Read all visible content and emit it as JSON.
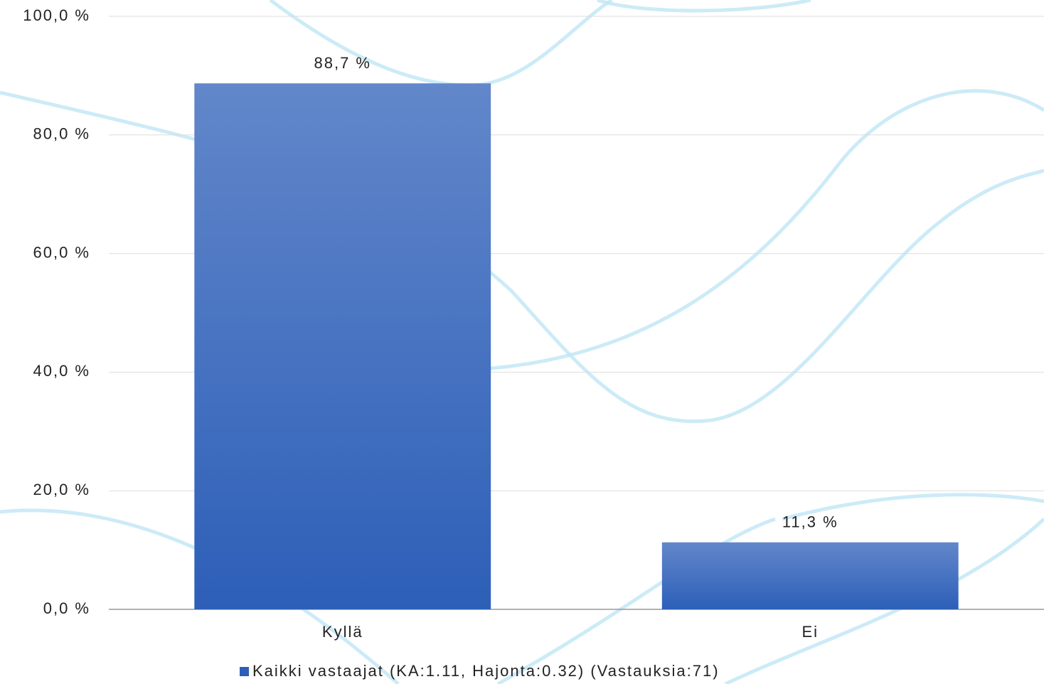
{
  "chart_data": {
    "type": "bar",
    "categories": [
      "Kyllä",
      "Ei"
    ],
    "series": [
      {
        "name": "Kaikki vastaajat (KA:1.11, Hajonta:0.32) (Vastauksia:71)",
        "color": "#2d5fb8",
        "values": [
          88.7,
          11.3
        ],
        "value_labels": [
          "88,7 %",
          "11,3 %"
        ]
      }
    ],
    "ylim": [
      0,
      100
    ],
    "yticks": [
      {
        "value": 0,
        "label": "0,0 %"
      },
      {
        "value": 20,
        "label": "20,0 %"
      },
      {
        "value": 40,
        "label": "40,0 %"
      },
      {
        "value": 60,
        "label": "60,0 %"
      },
      {
        "value": 80,
        "label": "80,0 %"
      },
      {
        "value": 100,
        "label": "100,0 %"
      }
    ],
    "grid": true,
    "legend": "bottom"
  }
}
